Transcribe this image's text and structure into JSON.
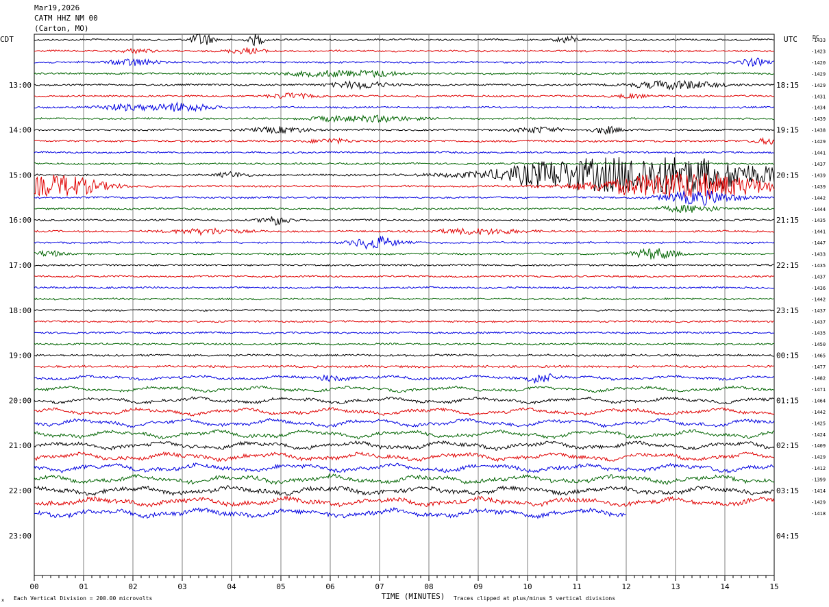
{
  "header": {
    "date": "Mar19,2026",
    "station": "CATM HHZ NM 00",
    "location": "(Carton, MO)"
  },
  "chart_data": {
    "type": "line",
    "plot_kind": "helicorder seismogram",
    "left_axis_label": "CDT",
    "right_axis_label": "UTC",
    "dc_label": "DC",
    "xlabel": "TIME (MINUTES)",
    "x_ticks": [
      "00",
      "01",
      "02",
      "03",
      "04",
      "05",
      "06",
      "07",
      "08",
      "09",
      "10",
      "11",
      "12",
      "13",
      "14",
      "15"
    ],
    "xlim": [
      0,
      15
    ],
    "left_time_labels": [
      {
        "trace": 4,
        "label": "13:00"
      },
      {
        "trace": 8,
        "label": "14:00"
      },
      {
        "trace": 12,
        "label": "15:00"
      },
      {
        "trace": 16,
        "label": "16:00"
      },
      {
        "trace": 20,
        "label": "17:00"
      },
      {
        "trace": 24,
        "label": "18:00"
      },
      {
        "trace": 28,
        "label": "19:00"
      },
      {
        "trace": 32,
        "label": "20:00"
      },
      {
        "trace": 36,
        "label": "21:00"
      },
      {
        "trace": 40,
        "label": "22:00"
      },
      {
        "trace": 44,
        "label": "23:00"
      }
    ],
    "right_time_labels": [
      {
        "trace": 4,
        "label": "18:15"
      },
      {
        "trace": 8,
        "label": "19:15"
      },
      {
        "trace": 12,
        "label": "20:15"
      },
      {
        "trace": 16,
        "label": "21:15"
      },
      {
        "trace": 20,
        "label": "22:15"
      },
      {
        "trace": 24,
        "label": "23:15"
      },
      {
        "trace": 28,
        "label": "00:15"
      },
      {
        "trace": 32,
        "label": "01:15"
      },
      {
        "trace": 36,
        "label": "02:15"
      },
      {
        "trace": 40,
        "label": "03:15"
      },
      {
        "trace": 44,
        "label": "04:15"
      }
    ],
    "dc_offsets": [
      "-1433",
      "-1423",
      "-1420",
      "-1429",
      "-1429",
      "-1431",
      "-1434",
      "-1439",
      "-1438",
      "-1429",
      "-1441",
      "-1437",
      "-1439",
      "-1439",
      "-1442",
      "-1444",
      "-1435",
      "-1441",
      "-1447",
      "-1433",
      "-1435",
      "-1437",
      "-1436",
      "-1442",
      "-1437",
      "-1437",
      "-1435",
      "-1450",
      "-1465",
      "-1477",
      "-1482",
      "-1471",
      "-1464",
      "-1442",
      "-1425",
      "-1424",
      "-1409",
      "-1429",
      "-1412",
      "-1399",
      "-1414",
      "-1429",
      "-1418"
    ],
    "trace_colors": [
      "#000000",
      "#e00000",
      "#0000e0",
      "#006400"
    ],
    "trace_count": 43,
    "last_trace_end_minute": 12,
    "footer_left": "Each Vertical Division =  200.00 microvolts",
    "footer_right": "Traces clipped at plus/minus 5 vertical divisions",
    "corner_mark": "x"
  }
}
